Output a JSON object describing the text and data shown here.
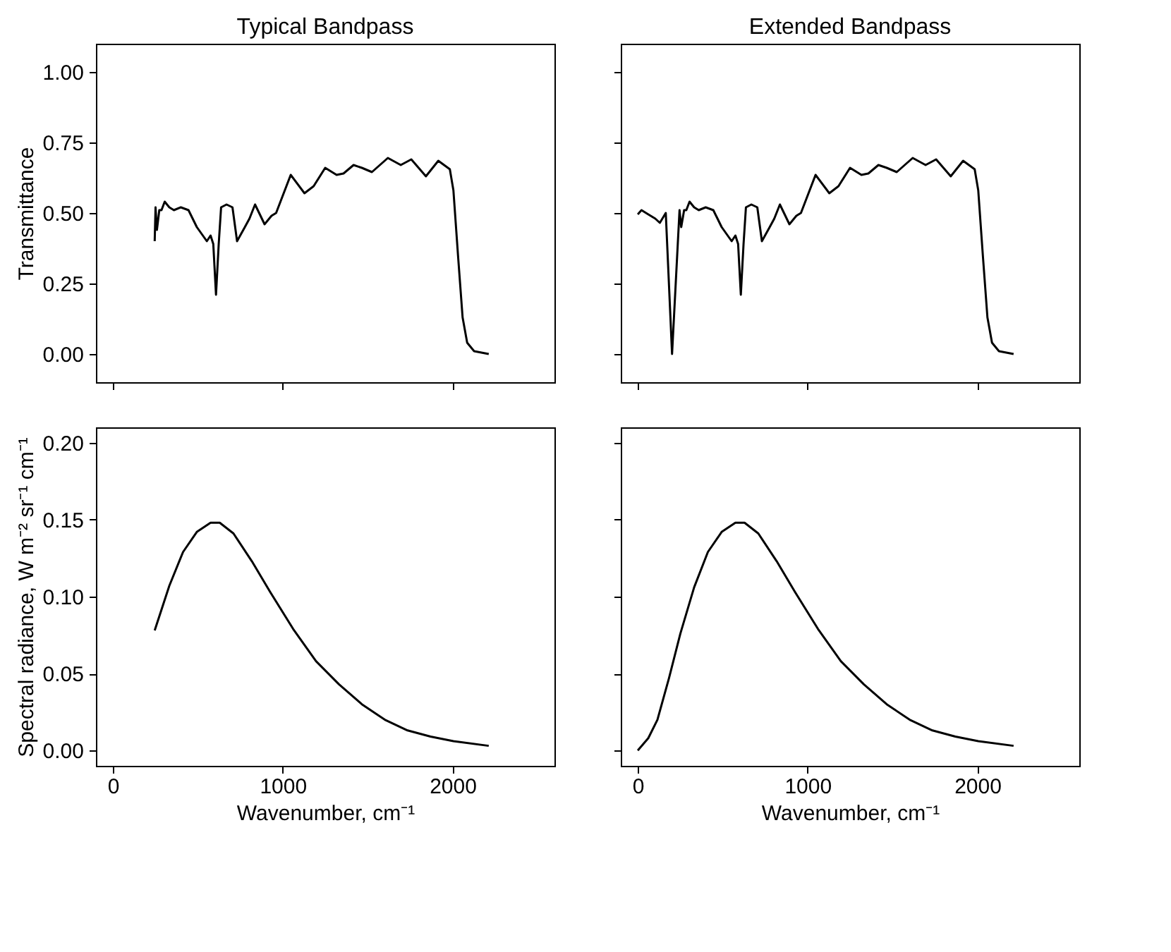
{
  "chart_data": [
    {
      "type": "line",
      "title": "Typical Bandpass",
      "ylabel": "Transmittance",
      "tick_labels": "y",
      "grid": false,
      "line_style": "solid",
      "xlim": [
        -100,
        2600
      ],
      "xticks": [
        0,
        1000,
        2000
      ],
      "ylim": [
        -0.1,
        1.1
      ],
      "yticks": [
        {
          "value": 0,
          "label": "0.00"
        },
        {
          "value": 0.25,
          "label": "0.25"
        },
        {
          "value": 0.5,
          "label": "0.50"
        },
        {
          "value": 0.75,
          "label": "0.75"
        },
        {
          "value": 1,
          "label": "1.00"
        }
      ],
      "x": [
        246,
        251,
        259,
        273,
        286,
        305,
        332,
        359,
        400,
        445,
        494,
        553,
        575,
        591,
        607,
        623,
        637,
        669,
        704,
        731,
        777,
        804,
        837,
        893,
        934,
        961,
        1047,
        1128,
        1182,
        1250,
        1317,
        1358,
        1417,
        1466,
        1525,
        1619,
        1695,
        1757,
        1843,
        1916,
        1984,
        2005,
        2032,
        2059,
        2086,
        2127,
        2213
      ],
      "series": [
        {
          "color": "#000000",
          "values": [
            0.4,
            0.52,
            0.44,
            0.51,
            0.51,
            0.54,
            0.52,
            0.51,
            0.52,
            0.51,
            0.45,
            0.4,
            0.42,
            0.39,
            0.21,
            0.39,
            0.52,
            0.53,
            0.52,
            0.4,
            0.45,
            0.48,
            0.53,
            0.46,
            0.49,
            0.5,
            0.635,
            0.57,
            0.595,
            0.66,
            0.635,
            0.64,
            0.67,
            0.66,
            0.645,
            0.695,
            0.67,
            0.69,
            0.63,
            0.685,
            0.655,
            0.58,
            0.35,
            0.13,
            0.04,
            0.01,
            0.0
          ]
        }
      ]
    },
    {
      "type": "line",
      "title": "Extended Bandpass",
      "tick_labels": false,
      "grid": false,
      "line_style": "solid",
      "xlim": [
        -100,
        2600
      ],
      "xticks": [
        0,
        1000,
        2000
      ],
      "ylim": [
        -0.1,
        1.1
      ],
      "yticks": [
        0,
        0.25,
        0.5,
        0.75,
        1
      ],
      "x": [
        0,
        22,
        62,
        103,
        130,
        165,
        202,
        246,
        256,
        273,
        286,
        305,
        332,
        359,
        400,
        445,
        494,
        553,
        575,
        591,
        607,
        623,
        637,
        669,
        704,
        731,
        777,
        804,
        837,
        893,
        934,
        961,
        1047,
        1128,
        1182,
        1250,
        1317,
        1358,
        1417,
        1466,
        1525,
        1619,
        1695,
        1757,
        1843,
        1916,
        1984,
        2005,
        2032,
        2059,
        2086,
        2127,
        2213
      ],
      "series": [
        {
          "color": "#000000",
          "values": [
            0.495,
            0.51,
            0.495,
            0.48,
            0.465,
            0.5,
            0.0,
            0.51,
            0.45,
            0.51,
            0.51,
            0.54,
            0.52,
            0.51,
            0.52,
            0.51,
            0.45,
            0.4,
            0.42,
            0.39,
            0.21,
            0.39,
            0.52,
            0.53,
            0.52,
            0.4,
            0.45,
            0.48,
            0.53,
            0.46,
            0.49,
            0.5,
            0.635,
            0.57,
            0.595,
            0.66,
            0.635,
            0.64,
            0.67,
            0.66,
            0.645,
            0.695,
            0.67,
            0.69,
            0.63,
            0.685,
            0.655,
            0.58,
            0.35,
            0.13,
            0.04,
            0.01,
            0.0
          ]
        }
      ]
    },
    {
      "type": "line",
      "ylabel": "Spectral radiance, W m⁻² sr⁻¹ cm⁻¹",
      "xlabel": "Wavenumber, cm⁻¹",
      "grid": false,
      "line_style": "solid",
      "xlim": [
        -100,
        2600
      ],
      "xticks": [
        0,
        1000,
        2000
      ],
      "ylim": [
        -0.01,
        0.21
      ],
      "yticks": [
        {
          "value": 0,
          "label": "0.00"
        },
        {
          "value": 0.05,
          "label": "0.05"
        },
        {
          "value": 0.1,
          "label": "0.10"
        },
        {
          "value": 0.15,
          "label": "0.15"
        },
        {
          "value": 0.2,
          "label": "0.20"
        }
      ],
      "x": [
        246,
        332,
        413,
        494,
        575,
        629,
        710,
        818,
        926,
        1061,
        1196,
        1331,
        1466,
        1601,
        1735,
        1870,
        2005,
        2213
      ],
      "series": [
        {
          "color": "#000000",
          "values": [
            0.078,
            0.107,
            0.129,
            0.142,
            0.148,
            0.148,
            0.141,
            0.123,
            0.103,
            0.079,
            0.058,
            0.043,
            0.03,
            0.02,
            0.013,
            0.009,
            0.006,
            0.003
          ]
        }
      ]
    },
    {
      "type": "line",
      "xlabel": "Wavenumber, cm⁻¹",
      "tick_labels": "x",
      "grid": false,
      "line_style": "solid",
      "xlim": [
        -100,
        2600
      ],
      "xticks": [
        0,
        1000,
        2000
      ],
      "ylim": [
        -0.01,
        0.21
      ],
      "yticks": [
        0,
        0.05,
        0.1,
        0.15,
        0.2
      ],
      "x": [
        0,
        62,
        116,
        184,
        251,
        332,
        413,
        494,
        575,
        629,
        710,
        818,
        926,
        1061,
        1196,
        1331,
        1466,
        1601,
        1735,
        1870,
        2005,
        2213
      ],
      "series": [
        {
          "color": "#000000",
          "values": [
            0.0,
            0.008,
            0.02,
            0.047,
            0.076,
            0.106,
            0.129,
            0.142,
            0.148,
            0.148,
            0.141,
            0.123,
            0.103,
            0.079,
            0.058,
            0.043,
            0.03,
            0.02,
            0.013,
            0.009,
            0.006,
            0.003
          ]
        }
      ]
    }
  ]
}
